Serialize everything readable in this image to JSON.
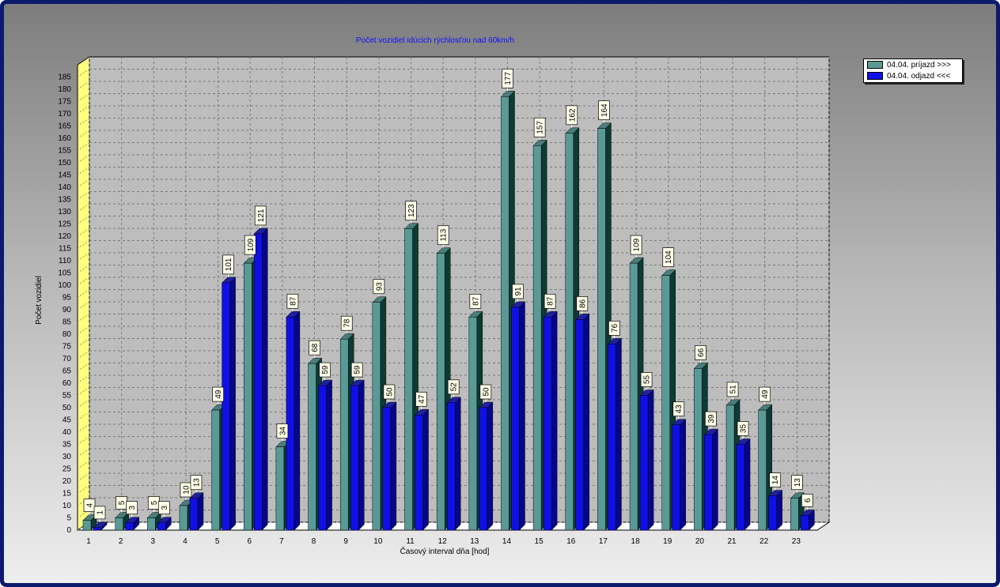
{
  "colors": {
    "series1": "#5a9a96",
    "series1_side": "#0d3a32",
    "series2": "#1010e6",
    "series2_side": "#06068a",
    "wall_left": "#ffff80",
    "frame_border": "#0c1a6e"
  },
  "chart_data": {
    "type": "bar",
    "title": "Počet vozidiel idúcich rýchlosťou nad 60km/h",
    "xlabel": "Časový interval dňa [hod]",
    "ylabel": "Počet vozidiel",
    "ylim": [
      0,
      185
    ],
    "ytick_step": 5,
    "grid": true,
    "legend_position": "top-right",
    "categories": [
      "1",
      "2",
      "3",
      "4",
      "5",
      "6",
      "7",
      "8",
      "9",
      "10",
      "11",
      "12",
      "13",
      "14",
      "15",
      "16",
      "17",
      "18",
      "19",
      "20",
      "21",
      "22",
      "23"
    ],
    "series": [
      {
        "name": "04.04.  príjazd >>>",
        "values": [
          4,
          5,
          5,
          10,
          49,
          109,
          34,
          68,
          78,
          93,
          123,
          113,
          87,
          177,
          157,
          162,
          164,
          109,
          104,
          66,
          51,
          49,
          13
        ]
      },
      {
        "name": "04.04.  odjazd <<<",
        "values": [
          1,
          3,
          3,
          13,
          101,
          121,
          87,
          59,
          59,
          50,
          47,
          52,
          50,
          91,
          87,
          86,
          76,
          55,
          43,
          39,
          35,
          14,
          6
        ]
      }
    ]
  }
}
